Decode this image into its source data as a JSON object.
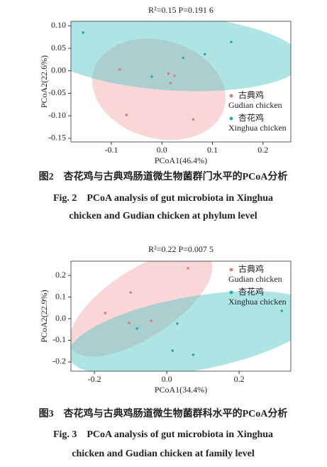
{
  "chart_data": [
    {
      "type": "scatter",
      "title": "R²=0.15 P=0.191 6",
      "xlabel": "PCoA1(46.4%)",
      "ylabel": "PCoA2(22.6%)",
      "xlim": [
        -0.18,
        0.255
      ],
      "ylim": [
        -0.158,
        0.11
      ],
      "xticks": [
        -0.1,
        {
          "value": 0,
          "label": "0.0"
        },
        0.1,
        0.2
      ],
      "yticks": [
        {
          "value": 0.1,
          "label": "0.10"
        },
        0.05,
        {
          "value": 0,
          "label": "0.00"
        },
        -0.05,
        {
          "value": -0.1,
          "label": "-0.10"
        },
        -0.15
      ],
      "legend": "center right",
      "series": [
        {
          "name": "古典鸡",
          "label_en": "Gudian chicken",
          "color": "#e07a7a",
          "ellipse_color": "#f4a6a6",
          "x": [
            -0.083,
            0.013,
            0.025,
            0.017,
            -0.07,
            0.062
          ],
          "y": [
            0.003,
            -0.006,
            -0.011,
            -0.027,
            -0.098,
            -0.108
          ]
        },
        {
          "name": "杏花鸡",
          "label_en": "Xinghua chicken",
          "color": "#25adad",
          "ellipse_color": "#4cc3c3",
          "x": [
            -0.156,
            0.137,
            0.085,
            0.042,
            -0.02
          ],
          "y": [
            0.085,
            0.064,
            0.037,
            0.029,
            -0.013
          ]
        }
      ],
      "caption": [
        "图2　杏花鸡与古典鸡肠道微生物菌群门水平的PCoA分析",
        "Fig. 2　PCoA analysis of gut microbiota in Xinghua",
        "chicken and Gudian chicken at phylum level"
      ]
    },
    {
      "type": "scatter",
      "title": "R²=0.22 P=0.007 5",
      "xlabel": "PCoA1(34.4%)",
      "ylabel": "PCoA2(22.9%)",
      "xlim": [
        -0.265,
        0.343
      ],
      "ylim": [
        -0.243,
        0.266
      ],
      "xticks": [
        -0.2,
        {
          "value": 0,
          "label": "0.0"
        },
        0.2
      ],
      "yticks": [
        0.2,
        0.1,
        {
          "value": 0,
          "label": "0.0"
        },
        -0.1,
        -0.2
      ],
      "legend": "upper right",
      "series": [
        {
          "name": "古典鸡",
          "label_en": "Gudian chicken",
          "color": "#e07a7a",
          "ellipse_color": "#f4a6a6",
          "x": [
            0.059,
            -0.1,
            -0.17,
            -0.104,
            -0.043
          ],
          "y": [
            0.233,
            0.121,
            0.026,
            -0.02,
            -0.01
          ]
        },
        {
          "name": "杏花鸡",
          "label_en": "Xinghua chicken",
          "color": "#25adad",
          "ellipse_color": "#4cc3c3",
          "x": [
            0.029,
            -0.082,
            0.318,
            0.016,
            0.073
          ],
          "y": [
            -0.023,
            -0.046,
            0.036,
            -0.148,
            -0.167
          ]
        }
      ],
      "caption": [
        "图3　杏花鸡与古典鸡肠道微生物菌群科水平的PCoA分析",
        "Fig. 3　PCoA analysis of gut microbiota in Xinghua",
        "chicken and Gudian chicken at family level"
      ]
    }
  ]
}
